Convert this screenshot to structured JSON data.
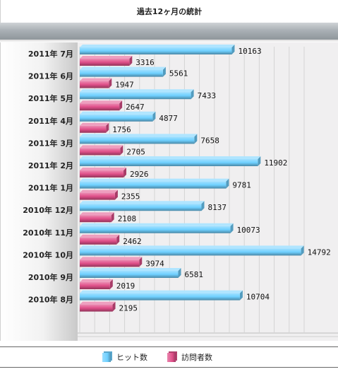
{
  "chart_data": {
    "type": "bar",
    "orientation": "horizontal",
    "title": "過去12ヶ月の統計",
    "categories": [
      "2011年 7月",
      "2011年 6月",
      "2011年 5月",
      "2011年 4月",
      "2011年 3月",
      "2011年 2月",
      "2011年 1月",
      "2010年 12月",
      "2010年 11月",
      "2010年 10月",
      "2010年 9月",
      "2010年 8月"
    ],
    "series": [
      {
        "name": "ヒット数",
        "color": "#6fd0ff",
        "values": [
          10163,
          5561,
          7433,
          4877,
          7658,
          11902,
          9781,
          8137,
          10073,
          14792,
          6581,
          10704
        ]
      },
      {
        "name": "訪問者数",
        "color": "#e0508a",
        "values": [
          3316,
          1947,
          2647,
          1756,
          2705,
          2926,
          2355,
          2108,
          2462,
          3974,
          2019,
          2195
        ]
      }
    ],
    "xlim": [
      0,
      15000
    ],
    "grid": true,
    "legend": "bottom"
  }
}
